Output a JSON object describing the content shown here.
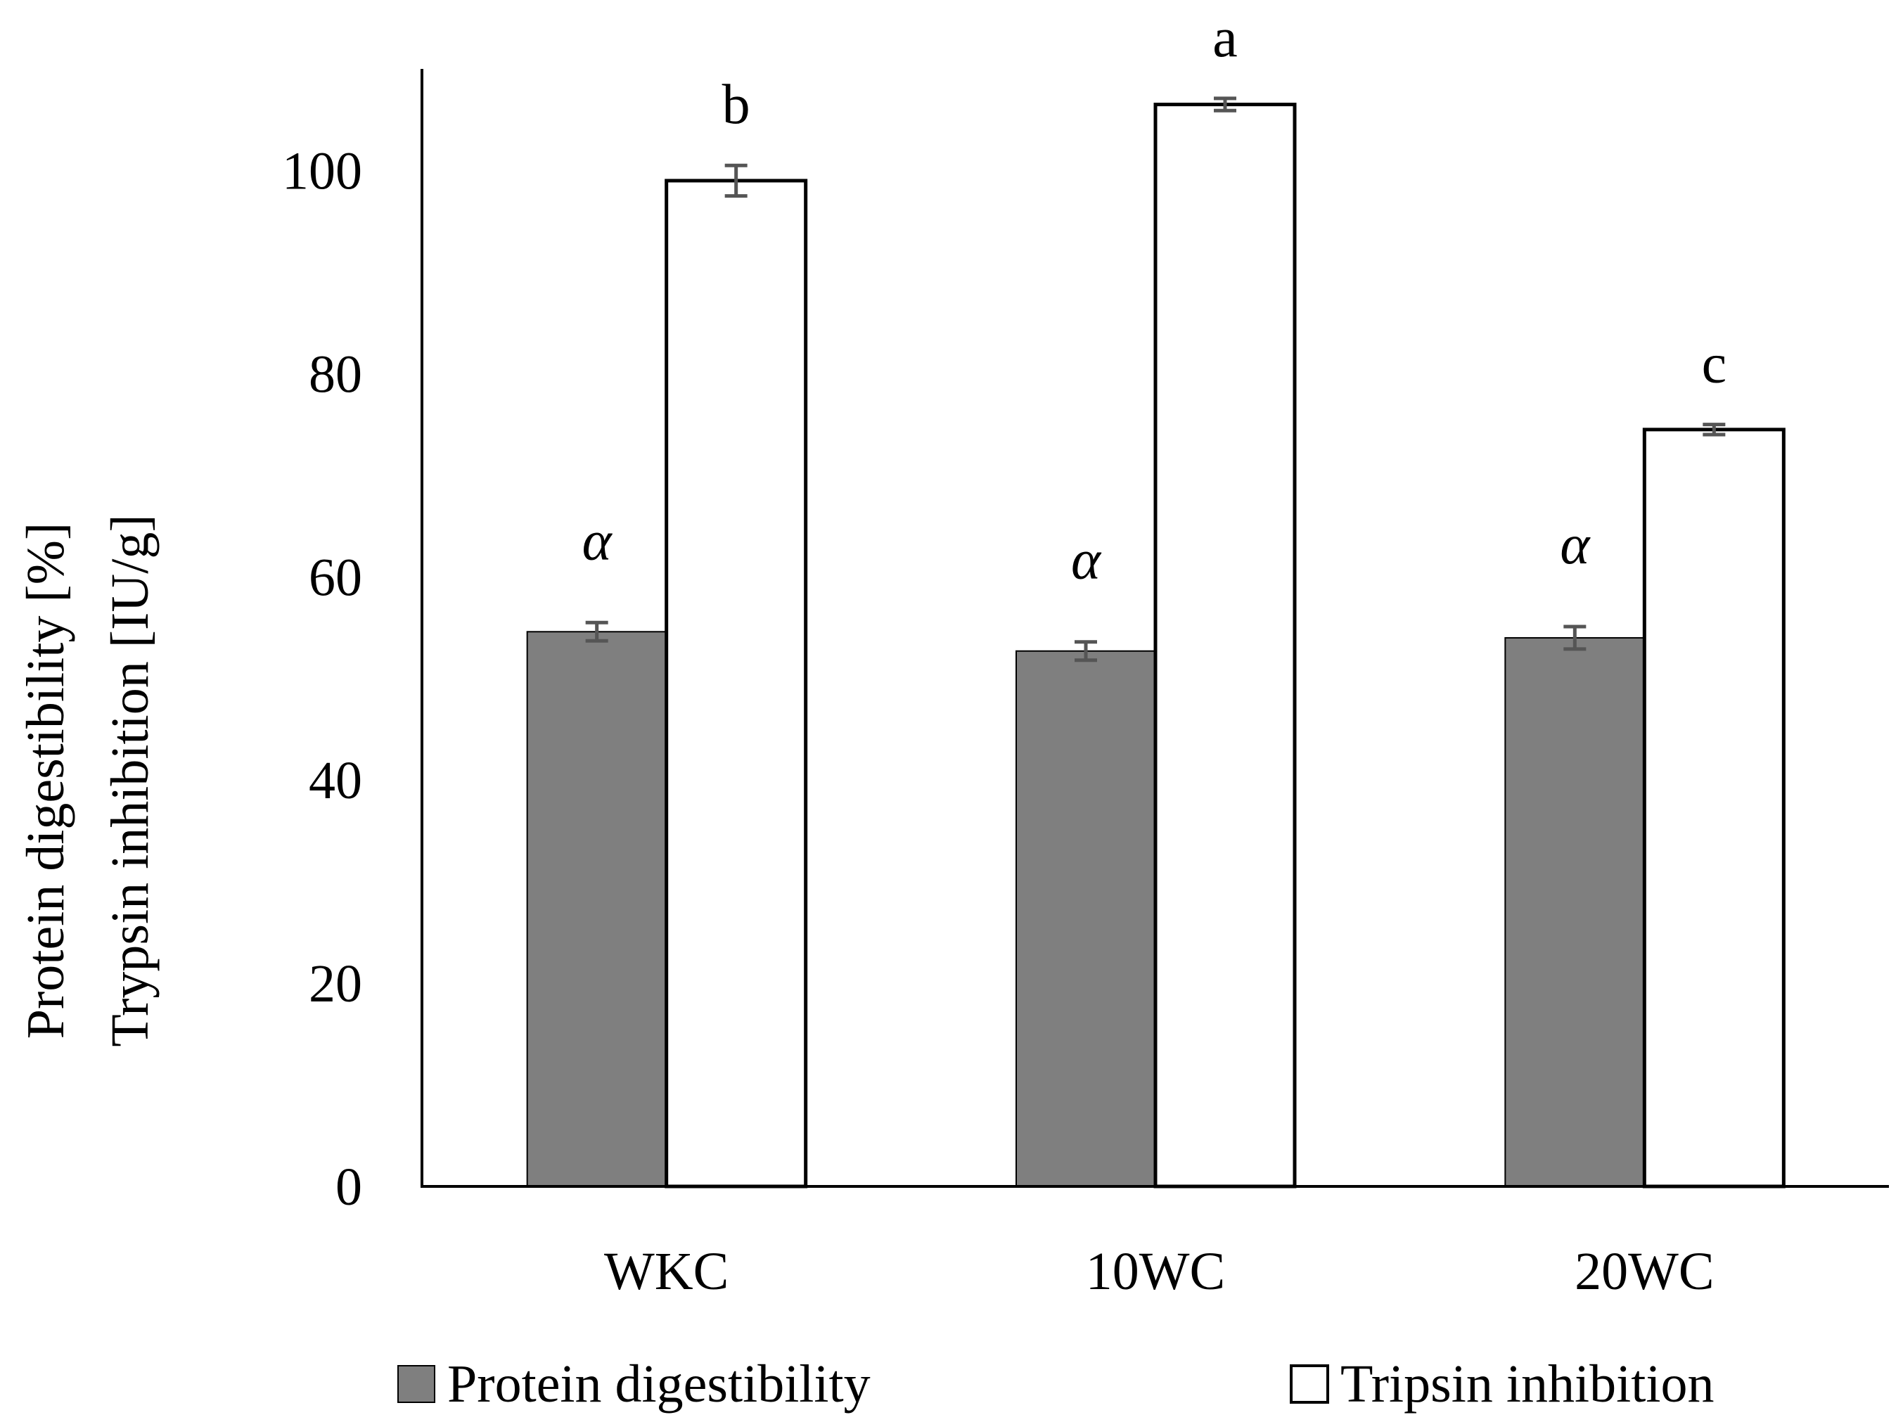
{
  "chart_data": {
    "type": "bar",
    "title": "",
    "xlabel": "",
    "ylabel_lines": [
      "Protein digestibility [%]",
      "Trypsin inhibition [IU/g]"
    ],
    "ylim": [
      0,
      110
    ],
    "yticks": [
      0,
      20,
      40,
      60,
      80,
      100
    ],
    "categories": [
      "WKC",
      "10WC",
      "20WC"
    ],
    "series": [
      {
        "name": "Protein digestibility",
        "color": "#7f7f7f",
        "values": [
          54.6,
          52.7,
          54.0
        ],
        "errors": [
          0.9,
          0.9,
          1.1
        ],
        "labels": [
          "α",
          "α",
          "α"
        ]
      },
      {
        "name": "Tripsin inhibition",
        "color": "#ffffff",
        "values": [
          99.0,
          106.5,
          74.5
        ],
        "errors": [
          1.5,
          0.6,
          0.5
        ],
        "labels": [
          "b",
          "a",
          "c"
        ]
      }
    ],
    "legend_position": "bottom"
  }
}
